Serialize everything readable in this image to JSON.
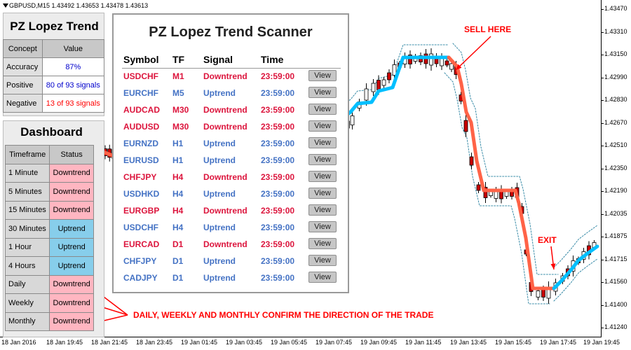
{
  "header": {
    "symbol_tf": "GBPUSD,M15",
    "ohlc": "1.43492 1.43653 1.43478 1.43613"
  },
  "y_axis": [
    "1.43470",
    "1.43310",
    "1.43150",
    "1.42990",
    "1.42830",
    "1.42670",
    "1.42510",
    "1.42350",
    "1.42190",
    "1.42035",
    "1.41875",
    "1.41715",
    "1.41560",
    "1.41400",
    "1.41240"
  ],
  "x_axis": [
    "18 Jan 2016",
    "18 Jan 19:45",
    "18 Jan 21:45",
    "18 Jan 23:45",
    "19 Jan 01:45",
    "19 Jan 03:45",
    "19 Jan 05:45",
    "19 Jan 07:45",
    "19 Jan 09:45",
    "19 Jan 11:45",
    "19 Jan 13:45",
    "19 Jan 15:45",
    "19 Jan 17:45",
    "19 Jan 19:45"
  ],
  "trend_panel": {
    "title": "PZ Lopez Trend",
    "headers": [
      "Concept",
      "Value"
    ],
    "rows": [
      {
        "label": "Accuracy",
        "value": "87%",
        "color": "#0000cc"
      },
      {
        "label": "Positive",
        "value": "80 of 93 signals",
        "color": "#0000cc"
      },
      {
        "label": "Negative",
        "value": "13 of 93 signals",
        "color": "#ff0000"
      }
    ]
  },
  "dashboard": {
    "title": "Dashboard",
    "headers": [
      "Timeframe",
      "Status"
    ],
    "rows": [
      {
        "tf": "1 Minute",
        "status": "Downtrend",
        "dir": "down"
      },
      {
        "tf": "5 Minutes",
        "status": "Downtrend",
        "dir": "down"
      },
      {
        "tf": "15 Minutes",
        "status": "Downtrend",
        "dir": "down"
      },
      {
        "tf": "30 Minutes",
        "status": "Uptrend",
        "dir": "up"
      },
      {
        "tf": "1 Hour",
        "status": "Uptrend",
        "dir": "up"
      },
      {
        "tf": "4 Hours",
        "status": "Uptrend",
        "dir": "up"
      },
      {
        "tf": "Daily",
        "status": "Downtrend",
        "dir": "down"
      },
      {
        "tf": "Weekly",
        "status": "Downtrend",
        "dir": "down"
      },
      {
        "tf": "Monthly",
        "status": "Downtrend",
        "dir": "down"
      }
    ]
  },
  "scanner": {
    "title": "PZ Lopez Trend Scanner",
    "headers": {
      "symbol": "Symbol",
      "tf": "TF",
      "signal": "Signal",
      "time": "Time"
    },
    "view_label": "View",
    "rows": [
      {
        "symbol": "USDCHF",
        "tf": "M1",
        "signal": "Downtrend",
        "time": "23:59:00",
        "dir": "down"
      },
      {
        "symbol": "EURCHF",
        "tf": "M5",
        "signal": "Uptrend",
        "time": "23:59:00",
        "dir": "up"
      },
      {
        "symbol": "AUDCAD",
        "tf": "M30",
        "signal": "Downtrend",
        "time": "23:59:00",
        "dir": "down"
      },
      {
        "symbol": "AUDUSD",
        "tf": "M30",
        "signal": "Downtrend",
        "time": "23:59:00",
        "dir": "down"
      },
      {
        "symbol": "EURNZD",
        "tf": "H1",
        "signal": "Uptrend",
        "time": "23:59:00",
        "dir": "up"
      },
      {
        "symbol": "EURUSD",
        "tf": "H1",
        "signal": "Uptrend",
        "time": "23:59:00",
        "dir": "up"
      },
      {
        "symbol": "CHFJPY",
        "tf": "H4",
        "signal": "Downtrend",
        "time": "23:59:00",
        "dir": "down"
      },
      {
        "symbol": "USDHKD",
        "tf": "H4",
        "signal": "Uptrend",
        "time": "23:59:00",
        "dir": "up"
      },
      {
        "symbol": "EURGBP",
        "tf": "H4",
        "signal": "Downtrend",
        "time": "23:59:00",
        "dir": "down"
      },
      {
        "symbol": "USDCHF",
        "tf": "H4",
        "signal": "Uptrend",
        "time": "23:59:00",
        "dir": "up"
      },
      {
        "symbol": "EURCAD",
        "tf": "D1",
        "signal": "Downtrend",
        "time": "23:59:00",
        "dir": "down"
      },
      {
        "symbol": "CHFJPY",
        "tf": "D1",
        "signal": "Uptrend",
        "time": "23:59:00",
        "dir": "up"
      },
      {
        "symbol": "CADJPY",
        "tf": "D1",
        "signal": "Uptrend",
        "time": "23:59:00",
        "dir": "up"
      }
    ]
  },
  "annotations": {
    "sell": "SELL HERE",
    "exit": "EXIT",
    "confirm": "DAILY, WEEKLY AND MONTHLY CONFIRM THE DIRECTION OF THE TRADE"
  },
  "colors": {
    "downtrend": "#ff6347",
    "uptrend": "#00bfff",
    "annotation": "#ff0000",
    "signal_down": "#dc143c",
    "signal_up": "#4472c4"
  }
}
